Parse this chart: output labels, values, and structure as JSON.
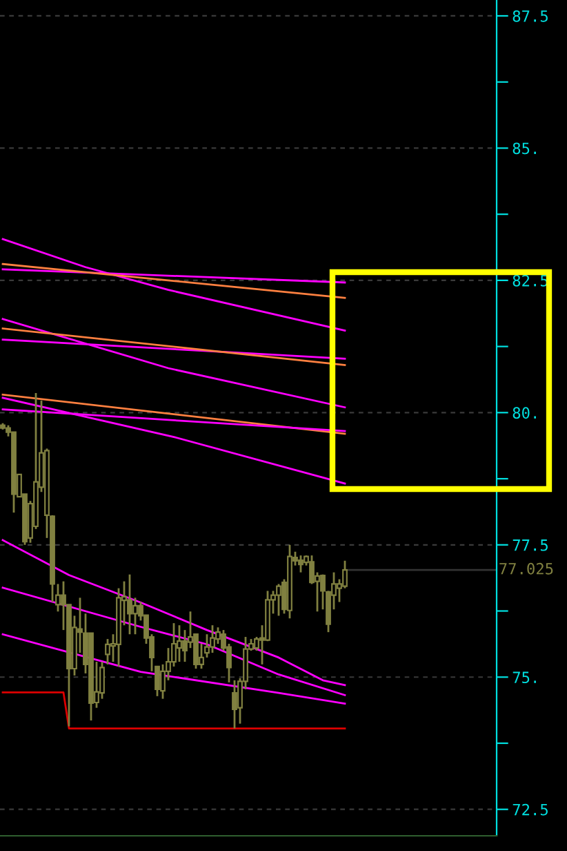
{
  "chart_data": {
    "type": "candlestick",
    "categories": [
      null,
      null,
      null,
      null,
      null,
      null,
      null,
      null,
      null,
      null,
      null,
      null,
      null,
      null,
      null,
      null,
      null,
      null,
      null,
      null,
      null,
      null,
      null,
      null,
      null,
      null,
      null,
      null,
      null,
      null,
      null,
      null,
      null,
      null,
      null,
      null,
      null,
      null,
      null,
      null,
      null,
      null,
      null,
      null,
      null,
      null,
      null,
      null,
      null,
      null,
      null,
      null,
      null,
      null,
      null,
      null,
      null,
      null,
      null,
      null,
      null,
      null,
      null,
      null,
      null,
      null,
      null,
      null,
      null,
      null,
      null,
      null,
      null,
      null,
      null,
      null,
      null,
      null,
      null,
      null,
      null,
      null,
      null,
      null,
      null,
      null,
      null,
      null,
      null,
      null
    ],
    "color": "#808040",
    "ohlc": [
      [
        79.76,
        79.8,
        79.68,
        79.71
      ],
      [
        79.71,
        79.76,
        79.55,
        79.63
      ],
      [
        79.63,
        79.63,
        78.11,
        78.46
      ],
      [
        78.41,
        78.83,
        78.41,
        78.83
      ],
      [
        78.46,
        78.46,
        77.5,
        77.56
      ],
      [
        77.63,
        78.33,
        77.54,
        78.28
      ],
      [
        77.85,
        80.37,
        77.8,
        78.69
      ],
      [
        78.59,
        80.23,
        78.5,
        79.24
      ],
      [
        78.06,
        79.32,
        77.63,
        79.28
      ],
      [
        78.04,
        78.06,
        76.42,
        76.76
      ],
      [
        76.37,
        76.76,
        76.24,
        76.55
      ],
      [
        76.55,
        76.81,
        75.89,
        76.37
      ],
      [
        76.37,
        76.37,
        74.07,
        75.16
      ],
      [
        75.16,
        76.16,
        75.03,
        75.94
      ],
      [
        75.91,
        76.5,
        75.46,
        75.85
      ],
      [
        75.83,
        76.2,
        75.07,
        75.24
      ],
      [
        75.83,
        75.83,
        74.18,
        74.51
      ],
      [
        74.52,
        75.29,
        74.42,
        74.72
      ],
      [
        74.7,
        75.29,
        74.59,
        75.18
      ],
      [
        75.43,
        75.72,
        75.24,
        75.62
      ],
      [
        75.59,
        75.81,
        75.29,
        75.63
      ],
      [
        75.62,
        76.68,
        75.2,
        76.5
      ],
      [
        76.45,
        76.81,
        75.98,
        76.52
      ],
      [
        76.46,
        76.94,
        75.81,
        76.2
      ],
      [
        76.2,
        76.5,
        75.81,
        76.35
      ],
      [
        76.35,
        76.42,
        76.07,
        76.16
      ],
      [
        76.17,
        76.17,
        75.63,
        75.74
      ],
      [
        75.76,
        75.81,
        75.11,
        75.37
      ],
      [
        75.2,
        75.2,
        74.64,
        74.77
      ],
      [
        74.74,
        75.24,
        74.59,
        75.11
      ],
      [
        75.11,
        75.55,
        74.94,
        75.29
      ],
      [
        75.29,
        76.02,
        75.2,
        75.63
      ],
      [
        75.55,
        75.98,
        75.29,
        75.68
      ],
      [
        75.68,
        75.89,
        75.29,
        75.5
      ],
      [
        75.66,
        76.24,
        75.55,
        75.76
      ],
      [
        75.81,
        75.81,
        75.16,
        75.24
      ],
      [
        75.24,
        75.63,
        75.16,
        75.37
      ],
      [
        75.46,
        75.81,
        75.37,
        75.57
      ],
      [
        75.57,
        75.98,
        75.46,
        75.74
      ],
      [
        75.72,
        75.94,
        75.63,
        75.85
      ],
      [
        75.81,
        75.89,
        75.5,
        75.55
      ],
      [
        75.57,
        75.63,
        74.9,
        75.18
      ],
      [
        74.7,
        74.94,
        74.03,
        74.39
      ],
      [
        74.42,
        74.98,
        74.12,
        74.92
      ],
      [
        74.92,
        75.76,
        74.77,
        75.53
      ],
      [
        75.53,
        75.72,
        75.5,
        75.63
      ],
      [
        75.55,
        75.76,
        75.5,
        75.72
      ],
      [
        75.74,
        75.98,
        75.24,
        75.7
      ],
      [
        75.7,
        76.63,
        75.68,
        76.46
      ],
      [
        76.46,
        76.63,
        76.2,
        76.55
      ],
      [
        76.55,
        76.76,
        76.16,
        76.72
      ],
      [
        76.79,
        76.85,
        76.2,
        76.28
      ],
      [
        76.26,
        77.5,
        76.11,
        77.28
      ],
      [
        77.26,
        77.37,
        77.11,
        77.2
      ],
      [
        77.21,
        77.3,
        76.98,
        77.13
      ],
      [
        77.17,
        77.3,
        77.11,
        77.28
      ],
      [
        77.18,
        77.3,
        76.76,
        76.79
      ],
      [
        76.81,
        76.98,
        76.24,
        76.91
      ],
      [
        76.92,
        76.94,
        76.28,
        76.63
      ],
      [
        76.61,
        76.63,
        75.85,
        76.0
      ],
      [
        76.55,
        76.98,
        76.28,
        76.76
      ],
      [
        76.68,
        76.85,
        76.42,
        76.76
      ],
      [
        76.72,
        77.2,
        76.68,
        77.025
      ],
      null,
      null,
      null,
      null,
      null,
      null,
      null,
      null,
      null,
      null,
      null,
      null,
      null,
      null,
      null,
      null,
      null,
      null,
      null,
      null,
      null,
      null,
      null,
      null,
      null,
      null,
      null
    ],
    "series": [
      {
        "type": "line",
        "color": "#ff00ff",
        "values": [
          83.28,
          null,
          null,
          null,
          null,
          null,
          null,
          null,
          null,
          null,
          null,
          null,
          null,
          null,
          null,
          82.75,
          null,
          null,
          null,
          null,
          null,
          null,
          null,
          null,
          null,
          null,
          null,
          null,
          null,
          null,
          82.32,
          null,
          null,
          null,
          null,
          null,
          null,
          null,
          null,
          null,
          null,
          null,
          null,
          null,
          null,
          null,
          null,
          null,
          null,
          null,
          null,
          null,
          null,
          null,
          null,
          null,
          null,
          null,
          null,
          null,
          null,
          null,
          81.55,
          null,
          null,
          null,
          null,
          null,
          null,
          null,
          null,
          null,
          null,
          null,
          null,
          null,
          null,
          null,
          null,
          null,
          null,
          null,
          null,
          null,
          null,
          null,
          null,
          null,
          null,
          null
        ]
      },
      {
        "type": "line",
        "color": "#ff00ff",
        "values": [
          82.71,
          null,
          null,
          null,
          null,
          null,
          null,
          null,
          null,
          null,
          null,
          null,
          null,
          null,
          null,
          null,
          null,
          null,
          null,
          null,
          null,
          null,
          null,
          null,
          null,
          null,
          null,
          null,
          null,
          null,
          null,
          null,
          null,
          null,
          null,
          null,
          null,
          null,
          null,
          null,
          null,
          null,
          null,
          null,
          null,
          null,
          null,
          null,
          null,
          null,
          null,
          null,
          null,
          null,
          null,
          null,
          null,
          null,
          null,
          null,
          null,
          null,
          82.46,
          null,
          null,
          null,
          null,
          null,
          null,
          null,
          null,
          null,
          null,
          null,
          null,
          null,
          null,
          null,
          null,
          null,
          null,
          null,
          null,
          null,
          null,
          null,
          null,
          null,
          null,
          null
        ]
      },
      {
        "type": "line",
        "color": "#ff8040",
        "values": [
          82.81,
          null,
          null,
          null,
          null,
          null,
          null,
          null,
          null,
          null,
          null,
          null,
          null,
          null,
          null,
          null,
          null,
          null,
          null,
          null,
          null,
          null,
          null,
          null,
          null,
          null,
          null,
          null,
          null,
          null,
          null,
          null,
          null,
          null,
          null,
          null,
          null,
          null,
          null,
          null,
          null,
          null,
          null,
          null,
          null,
          null,
          null,
          null,
          null,
          null,
          null,
          null,
          null,
          null,
          null,
          null,
          null,
          null,
          null,
          null,
          null,
          null,
          82.17,
          null,
          null,
          null,
          null,
          null,
          null,
          null,
          null,
          null,
          null,
          null,
          null,
          null,
          null,
          null,
          null,
          null,
          null,
          null,
          null,
          null,
          null,
          null,
          null,
          null,
          null,
          null
        ]
      },
      {
        "type": "line",
        "color": "#ff00ff",
        "values": [
          81.77,
          null,
          null,
          null,
          null,
          null,
          null,
          null,
          null,
          null,
          null,
          null,
          null,
          null,
          null,
          null,
          null,
          null,
          null,
          null,
          null,
          null,
          null,
          null,
          null,
          null,
          null,
          null,
          null,
          null,
          80.84,
          null,
          null,
          null,
          null,
          null,
          null,
          null,
          null,
          null,
          null,
          null,
          null,
          null,
          null,
          null,
          null,
          null,
          null,
          null,
          null,
          null,
          null,
          null,
          null,
          null,
          null,
          null,
          null,
          null,
          null,
          null,
          80.1,
          null,
          null,
          null,
          null,
          null,
          null,
          null,
          null,
          null,
          null,
          null,
          null,
          null,
          null,
          null,
          null,
          null,
          null,
          null,
          null,
          null,
          null,
          null,
          null,
          null,
          null,
          null
        ]
      },
      {
        "type": "line",
        "color": "#ff00ff",
        "values": [
          81.38,
          null,
          null,
          null,
          null,
          null,
          null,
          null,
          null,
          null,
          null,
          null,
          null,
          null,
          null,
          null,
          null,
          null,
          null,
          null,
          null,
          null,
          null,
          null,
          null,
          null,
          null,
          null,
          null,
          null,
          null,
          null,
          null,
          null,
          null,
          null,
          null,
          null,
          null,
          null,
          null,
          null,
          null,
          null,
          null,
          null,
          null,
          null,
          null,
          null,
          null,
          null,
          null,
          null,
          null,
          null,
          null,
          null,
          null,
          null,
          null,
          null,
          81.02,
          null,
          null,
          null,
          null,
          null,
          null,
          null,
          null,
          null,
          null,
          null,
          null,
          null,
          null,
          null,
          null,
          null,
          null,
          null,
          null,
          null,
          null,
          null,
          null,
          null,
          null,
          null
        ]
      },
      {
        "type": "line",
        "color": "#ff8040",
        "values": [
          81.59,
          null,
          null,
          null,
          null,
          null,
          null,
          null,
          null,
          null,
          null,
          null,
          null,
          null,
          null,
          null,
          null,
          null,
          null,
          null,
          null,
          null,
          null,
          null,
          null,
          null,
          null,
          null,
          null,
          null,
          null,
          null,
          null,
          null,
          null,
          null,
          null,
          null,
          null,
          null,
          null,
          null,
          null,
          null,
          null,
          null,
          null,
          null,
          null,
          null,
          null,
          null,
          null,
          null,
          null,
          null,
          null,
          null,
          null,
          null,
          null,
          null,
          80.9,
          null,
          null,
          null,
          null,
          null,
          null,
          null,
          null,
          null,
          null,
          null,
          null,
          null,
          null,
          null,
          null,
          null,
          null,
          null,
          null,
          null,
          null,
          null,
          null,
          null,
          null,
          null
        ]
      },
      {
        "type": "line",
        "color": "#ff8040",
        "values": [
          80.34,
          null,
          null,
          null,
          null,
          null,
          null,
          null,
          null,
          null,
          null,
          null,
          null,
          null,
          null,
          null,
          null,
          null,
          null,
          null,
          null,
          null,
          null,
          null,
          null,
          null,
          null,
          null,
          null,
          null,
          null,
          null,
          null,
          null,
          null,
          null,
          null,
          null,
          null,
          null,
          null,
          null,
          null,
          null,
          null,
          null,
          null,
          null,
          null,
          null,
          null,
          null,
          null,
          null,
          null,
          null,
          null,
          null,
          null,
          null,
          null,
          null,
          79.6,
          null,
          null,
          null,
          null,
          null,
          null,
          null,
          null,
          null,
          null,
          null,
          null,
          null,
          null,
          null,
          null,
          null,
          null,
          null,
          null,
          null,
          null,
          null,
          null,
          null,
          null,
          null
        ]
      },
      {
        "type": "line",
        "color": "#ff00ff",
        "values": [
          80.28,
          null,
          null,
          null,
          null,
          null,
          null,
          null,
          null,
          null,
          null,
          null,
          null,
          null,
          null,
          null,
          null,
          null,
          null,
          null,
          null,
          null,
          null,
          null,
          null,
          null,
          null,
          null,
          null,
          null,
          null,
          79.54,
          null,
          null,
          null,
          null,
          null,
          null,
          null,
          null,
          null,
          null,
          null,
          null,
          null,
          null,
          null,
          null,
          null,
          null,
          null,
          null,
          null,
          null,
          null,
          null,
          null,
          null,
          null,
          null,
          null,
          null,
          78.66,
          null,
          null,
          null,
          null,
          null,
          null,
          null,
          null,
          null,
          null,
          null,
          null,
          null,
          null,
          null,
          null,
          null,
          null,
          null,
          null,
          null,
          null,
          null,
          null,
          null,
          null,
          null
        ]
      },
      {
        "type": "line",
        "color": "#ff00ff",
        "values": [
          80.06,
          null,
          null,
          null,
          null,
          null,
          null,
          null,
          null,
          null,
          null,
          null,
          null,
          null,
          null,
          null,
          null,
          null,
          null,
          null,
          null,
          null,
          null,
          null,
          null,
          null,
          null,
          null,
          null,
          null,
          null,
          null,
          null,
          null,
          null,
          null,
          null,
          null,
          null,
          null,
          null,
          null,
          null,
          null,
          null,
          null,
          null,
          null,
          null,
          null,
          null,
          null,
          null,
          null,
          null,
          null,
          null,
          null,
          null,
          null,
          null,
          null,
          79.65,
          null,
          null,
          null,
          null,
          null,
          null,
          null,
          null,
          null,
          null,
          null,
          null,
          null,
          null,
          null,
          null,
          null,
          null,
          null,
          null,
          null,
          null,
          null,
          null,
          null,
          null,
          null
        ]
      },
      {
        "type": "line",
        "color": "#ff00ff",
        "values": [
          77.59,
          null,
          null,
          null,
          null,
          null,
          null,
          null,
          null,
          null,
          null,
          null,
          76.93,
          null,
          null,
          null,
          null,
          null,
          null,
          null,
          null,
          null,
          null,
          null,
          null,
          76.41,
          null,
          null,
          null,
          null,
          null,
          null,
          null,
          null,
          null,
          null,
          null,
          75.89,
          null,
          null,
          null,
          null,
          null,
          null,
          null,
          null,
          null,
          null,
          null,
          null,
          75.37,
          null,
          null,
          null,
          null,
          null,
          null,
          null,
          74.94,
          null,
          null,
          null,
          74.85,
          null,
          null,
          null,
          null,
          null,
          null,
          null,
          null,
          null,
          null,
          null,
          null,
          null,
          null,
          null,
          null,
          null,
          null,
          null,
          null,
          null,
          null,
          null,
          null,
          null,
          null,
          null
        ]
      },
      {
        "type": "line",
        "color": "#ff00ff",
        "values": [
          76.69,
          null,
          null,
          null,
          null,
          null,
          null,
          null,
          null,
          null,
          null,
          null,
          null,
          null,
          null,
          null,
          null,
          null,
          null,
          null,
          null,
          null,
          null,
          null,
          null,
          75.95,
          null,
          null,
          null,
          null,
          null,
          null,
          null,
          null,
          null,
          null,
          null,
          75.62,
          null,
          null,
          null,
          null,
          null,
          null,
          null,
          null,
          null,
          null,
          null,
          null,
          75.05,
          null,
          null,
          null,
          null,
          null,
          null,
          null,
          null,
          null,
          null,
          null,
          74.66,
          null,
          null,
          null,
          null,
          null,
          null,
          null,
          null,
          null,
          null,
          null,
          null,
          null,
          null,
          null,
          null,
          null,
          null,
          null,
          null,
          null,
          null,
          null,
          null,
          null,
          null,
          null
        ]
      },
      {
        "type": "line",
        "color": "#ff00ff",
        "values": [
          75.81,
          null,
          null,
          null,
          null,
          null,
          null,
          null,
          null,
          null,
          null,
          null,
          null,
          null,
          null,
          null,
          null,
          null,
          null,
          null,
          null,
          null,
          null,
          null,
          null,
          75.1,
          null,
          null,
          null,
          null,
          null,
          null,
          null,
          null,
          null,
          null,
          null,
          null,
          null,
          null,
          null,
          null,
          null,
          null,
          null,
          null,
          null,
          null,
          null,
          null,
          74.7,
          null,
          null,
          null,
          null,
          null,
          null,
          null,
          null,
          null,
          null,
          null,
          74.5,
          null,
          null,
          null,
          null,
          null,
          null,
          null,
          null,
          null,
          null,
          null,
          null,
          null,
          null,
          null,
          null,
          null,
          null,
          null,
          null,
          null,
          null,
          null,
          null,
          null,
          null,
          null
        ]
      },
      {
        "type": "line",
        "color": "#dd0000",
        "values": [
          74.71,
          null,
          null,
          null,
          null,
          null,
          null,
          null,
          null,
          null,
          null,
          74.71,
          74.03,
          null,
          null,
          null,
          null,
          null,
          null,
          null,
          null,
          null,
          null,
          null,
          null,
          null,
          null,
          null,
          null,
          null,
          null,
          null,
          null,
          null,
          null,
          null,
          null,
          null,
          null,
          null,
          null,
          null,
          null,
          null,
          null,
          null,
          null,
          null,
          null,
          null,
          null,
          null,
          null,
          null,
          null,
          null,
          null,
          null,
          null,
          null,
          null,
          null,
          74.03,
          null,
          null,
          null,
          null,
          null,
          null,
          null,
          null,
          null,
          null,
          null,
          null,
          null,
          null,
          null,
          null,
          null,
          null,
          null,
          null,
          null,
          null,
          null,
          null,
          null,
          null,
          null
        ]
      }
    ],
    "ylim": [
      72.0,
      87.8
    ],
    "yticks": [
      {
        "value": 72.5,
        "label": "72.5"
      },
      {
        "value": 73.75,
        "label": null
      },
      {
        "value": 75,
        "label": "75."
      },
      {
        "value": 76.25,
        "label": null
      },
      {
        "value": 77.5,
        "label": "77.5"
      },
      {
        "value": 78.75,
        "label": null
      },
      {
        "value": 80,
        "label": "80."
      },
      {
        "value": 81.25,
        "label": null
      },
      {
        "value": 82.5,
        "label": "82.5"
      },
      {
        "value": 83.75,
        "label": null
      },
      {
        "value": 85,
        "label": "85."
      },
      {
        "value": 86.25,
        "label": null
      },
      {
        "value": 87.5,
        "label": "87.5"
      }
    ],
    "grid": "y",
    "tick_labels": "y",
    "ref_lines": [
      {
        "axis": "y",
        "value": 77.025,
        "label": "77.025"
      }
    ]
  }
}
